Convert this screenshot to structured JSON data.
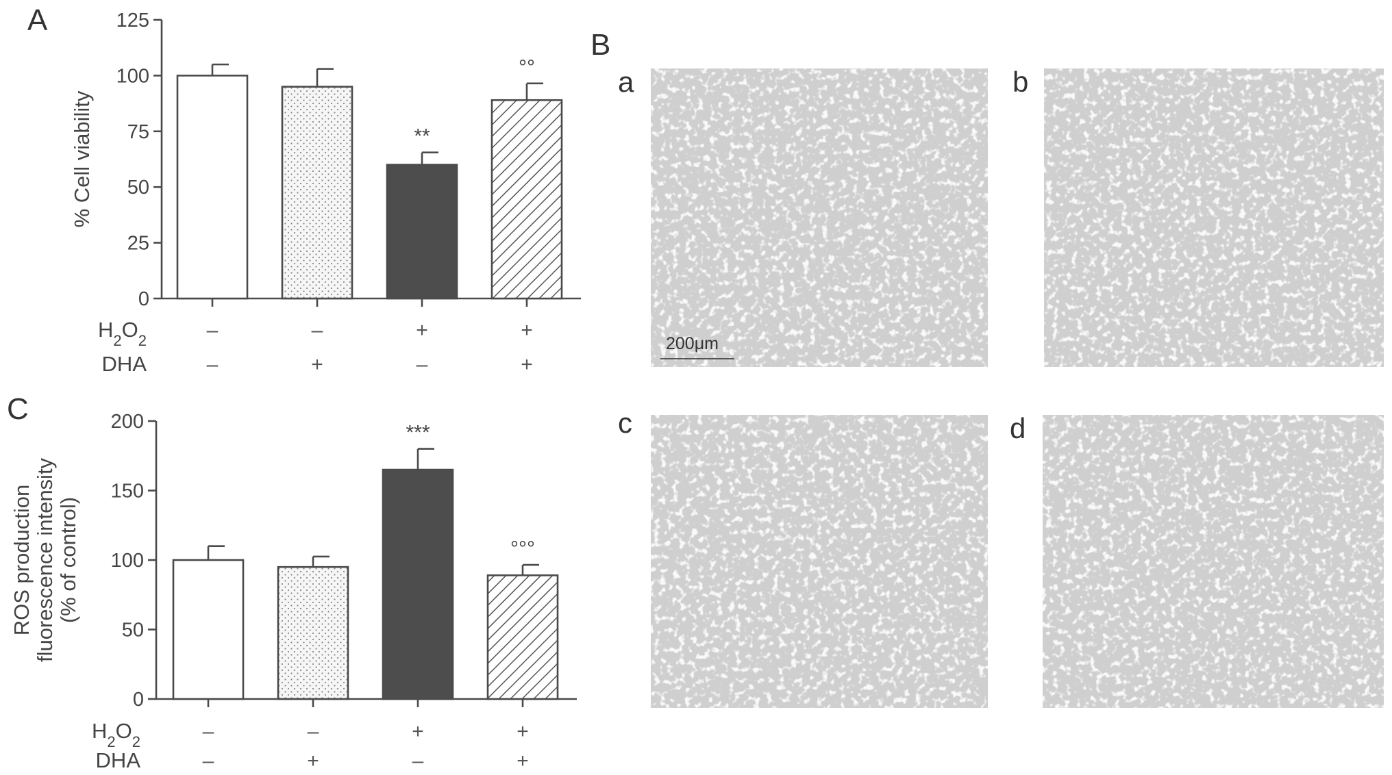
{
  "panels": {
    "A": "A",
    "B": "B",
    "C": "C"
  },
  "images": {
    "a": "a",
    "b": "b",
    "c": "c",
    "d": "d",
    "scale_bar": "200μm"
  },
  "conditions": {
    "h2o2_label": "H2O2",
    "dha_label": "DHA"
  },
  "colors": {
    "control": "#ffffff",
    "dha": "#f3f3f3",
    "h2o2": "#4d4d4d",
    "h2o2_dha": "#ffffff",
    "axis": "#4a4a4a",
    "micrograph_bg": "#cfcfcf"
  },
  "chart_data": [
    {
      "panel": "A",
      "type": "bar",
      "ylabel": "% Cell viability",
      "ylim": [
        0,
        125
      ],
      "yticks": [
        0,
        25,
        50,
        75,
        100,
        125
      ],
      "groups": [
        {
          "h2o2": "–",
          "dha": "–",
          "value": 100,
          "error": 5,
          "fill": "white",
          "sig": ""
        },
        {
          "h2o2": "–",
          "dha": "+",
          "value": 95,
          "error": 8,
          "fill": "dotted",
          "sig": ""
        },
        {
          "h2o2": "+",
          "dha": "–",
          "value": 60,
          "error": 5.5,
          "fill": "dark",
          "sig": "**"
        },
        {
          "h2o2": "+",
          "dha": "+",
          "value": 89,
          "error": 7.5,
          "fill": "hatched",
          "sig": "°°"
        }
      ]
    },
    {
      "panel": "C",
      "type": "bar",
      "ylabel_lines": [
        "ROS production",
        "fluorescence intensity",
        "(% of control)"
      ],
      "ylim": [
        0,
        200
      ],
      "yticks": [
        0,
        50,
        100,
        150,
        200
      ],
      "groups": [
        {
          "h2o2": "–",
          "dha": "–",
          "value": 100,
          "error": 10,
          "fill": "white",
          "sig": ""
        },
        {
          "h2o2": "–",
          "dha": "+",
          "value": 95,
          "error": 7.5,
          "fill": "dotted",
          "sig": ""
        },
        {
          "h2o2": "+",
          "dha": "–",
          "value": 165,
          "error": 15,
          "fill": "dark",
          "sig": "***"
        },
        {
          "h2o2": "+",
          "dha": "+",
          "value": 89,
          "error": 7.5,
          "fill": "hatched",
          "sig": "°°°"
        }
      ]
    }
  ]
}
